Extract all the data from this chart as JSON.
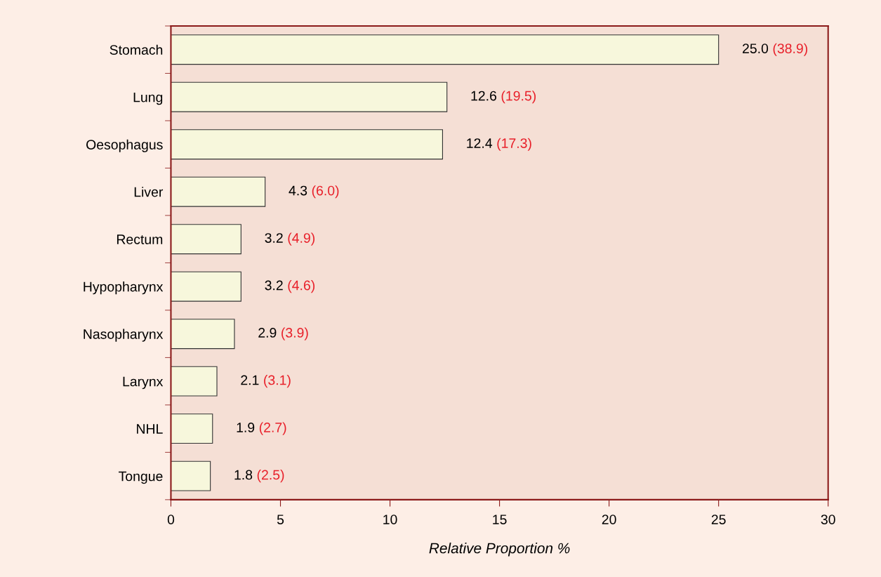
{
  "chart_data": {
    "type": "bar",
    "orientation": "horizontal",
    "categories": [
      "Stomach",
      "Lung",
      "Oesophagus",
      "Liver",
      "Rectum",
      "Hypopharynx",
      "Nasopharynx",
      "Larynx",
      "NHL",
      "Tongue"
    ],
    "values": [
      25.0,
      12.6,
      12.4,
      4.3,
      3.2,
      3.2,
      2.9,
      2.1,
      1.9,
      1.8
    ],
    "color": "#f7f7dc",
    "value_labels": [
      "25.0",
      "12.6",
      "12.4",
      "4.3",
      "3.2",
      "3.2",
      "2.9",
      "2.1",
      "1.9",
      "1.8"
    ],
    "annotations": [
      "(38.9)",
      "(19.5)",
      "(17.3)",
      "(6.0)",
      "(4.9)",
      "(4.6)",
      "(3.9)",
      "(3.1)",
      "(2.7)",
      "(2.5)"
    ],
    "xlabel": "Relative Proportion %",
    "xlim": [
      0,
      30
    ],
    "xticks": [
      0,
      5,
      10,
      15,
      20,
      25,
      30
    ],
    "grid": false,
    "legend": false
  }
}
